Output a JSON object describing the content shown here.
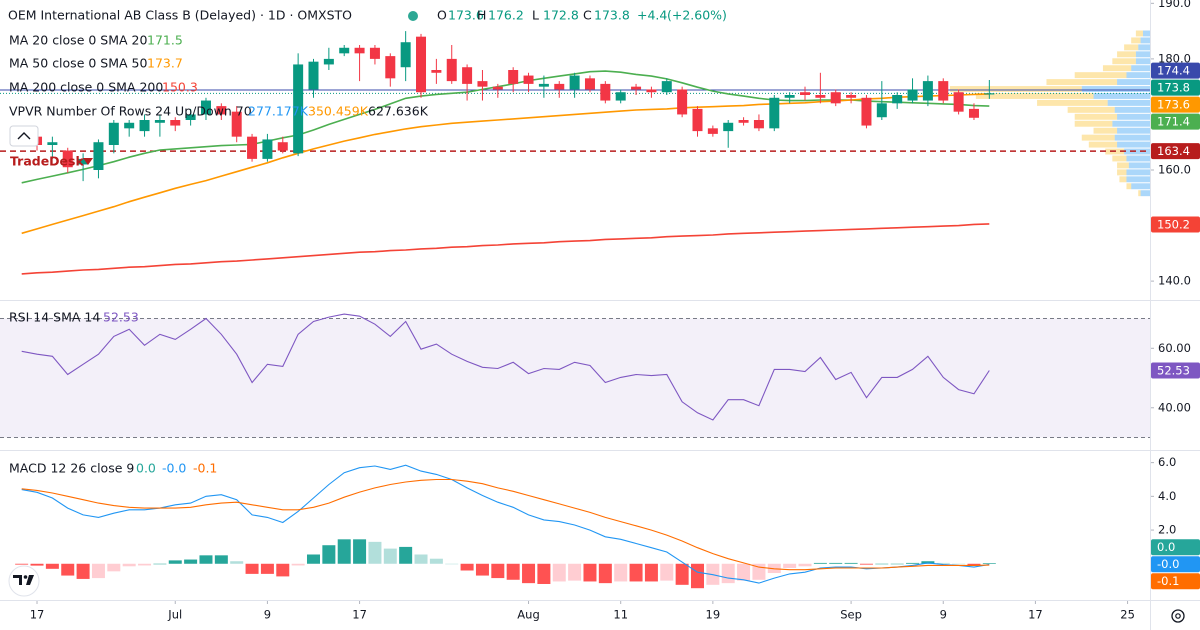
{
  "chart_data": [
    {
      "type": "candlestick",
      "title": "OEM International AB Class B (Delayed) · 1D · OMXSTO",
      "ohlc_labels": [
        "O",
        "H",
        "L",
        "C"
      ],
      "change": {
        "value": 4.4,
        "label": "+4.4"
      },
      "change_pct": {
        "value": 2.6,
        "label": "(+2.60%)"
      },
      "annotation": "TradeDesk",
      "up_color": "#089981",
      "down_color": "#f23645",
      "x": [
        0,
        1,
        2,
        3,
        4,
        5,
        6,
        7,
        8,
        9,
        10,
        11,
        12,
        13,
        14,
        15,
        16,
        17,
        18,
        19,
        20,
        21,
        22,
        23,
        24,
        25,
        26,
        27,
        28,
        29,
        30,
        31,
        32,
        33,
        34,
        35,
        36,
        37,
        38,
        39,
        40,
        41,
        42,
        43,
        44,
        45,
        46,
        47,
        48,
        49,
        50,
        51,
        52,
        53,
        54,
        55,
        56,
        57,
        58,
        59,
        60,
        61,
        62,
        63
      ],
      "open": [
        166,
        166,
        164.5,
        163.5,
        161,
        160,
        164.5,
        167.5,
        167,
        168.5,
        169,
        169,
        170,
        171.5,
        170.5,
        166,
        162,
        165,
        163,
        174.5,
        179,
        181,
        182,
        182,
        180.5,
        178.5,
        184,
        178,
        180,
        178.5,
        176,
        175,
        178,
        177,
        175,
        175.5,
        174.5,
        176.5,
        175.5,
        172.5,
        175,
        174.5,
        174,
        174.5,
        171,
        167.5,
        167,
        169,
        169,
        167.5,
        173,
        174,
        173.5,
        174,
        173.5,
        173,
        169.5,
        172,
        172.5,
        172.5,
        176,
        174,
        171,
        173.6
      ],
      "high": [
        168,
        167,
        166,
        164,
        163,
        165.5,
        169,
        169,
        170,
        170,
        169.5,
        171,
        173,
        172,
        171.5,
        166.5,
        166.5,
        166,
        181,
        180,
        182,
        182.5,
        182.5,
        182.5,
        181,
        185,
        184.5,
        180,
        182.5,
        179,
        178,
        175.5,
        178.5,
        177.5,
        177,
        176,
        177.5,
        177,
        176,
        174.5,
        175.5,
        175,
        176.5,
        175,
        171.5,
        168,
        169,
        169.5,
        170,
        173.5,
        174,
        175,
        177.5,
        174.5,
        174,
        173.5,
        176,
        174,
        176.5,
        177,
        176.5,
        174.5,
        172,
        176.2
      ],
      "low": [
        165,
        163.5,
        162,
        159.5,
        158,
        158.5,
        163,
        166,
        166,
        166,
        167,
        168,
        169,
        169,
        165,
        161.5,
        161.5,
        163,
        162.5,
        173,
        178,
        180.5,
        176,
        179,
        175,
        176,
        173,
        175.5,
        175.5,
        172.5,
        172.5,
        173,
        174,
        174,
        173,
        173,
        173,
        174,
        172,
        172,
        173.5,
        173,
        173.5,
        169.5,
        166,
        166,
        164,
        168,
        167,
        167,
        172,
        172.5,
        172,
        171.5,
        172,
        167.5,
        169,
        171,
        172,
        171.5,
        172,
        170,
        169,
        172.8
      ],
      "close": [
        167,
        164.5,
        165,
        160.5,
        162,
        165,
        168.5,
        168.5,
        169,
        169,
        168,
        170,
        172.5,
        170,
        166,
        162,
        165.5,
        163.5,
        179,
        179.5,
        180,
        182,
        181,
        180,
        176.5,
        183,
        174,
        177.5,
        176,
        175.5,
        175,
        174.5,
        175.5,
        175.5,
        175.5,
        174.5,
        177,
        174.5,
        172.5,
        174,
        174.5,
        174,
        176,
        170,
        167,
        166.5,
        168.5,
        168.5,
        167.5,
        173,
        173.5,
        173.5,
        173,
        172,
        173,
        168,
        172,
        173.5,
        174.5,
        176,
        172.5,
        170.5,
        169.4,
        173.8
      ],
      "series": [
        {
          "name": "MA 20 close 0 SMA 20",
          "color": "#4caf50",
          "values": [
            157.7,
            158.3,
            158.9,
            159.5,
            160.1,
            160.8,
            161.5,
            162.3,
            163.0,
            163.6,
            163.8,
            164.0,
            164.2,
            164.4,
            164.5,
            164.6,
            165.2,
            165.8,
            166.3,
            167.2,
            168.2,
            169.1,
            170.0,
            170.9,
            171.9,
            172.9,
            173.3,
            173.6,
            173.8,
            174.0,
            174.5,
            175.0,
            175.5,
            176.1,
            176.5,
            176.9,
            177.3,
            177.7,
            177.8,
            177.6,
            177.2,
            176.9,
            176.4,
            175.7,
            174.9,
            174.2,
            173.7,
            173.3,
            172.9,
            172.6,
            172.5,
            172.5,
            172.6,
            172.6,
            172.6,
            172.4,
            172.3,
            172.2,
            172.1,
            172.0,
            171.9,
            171.8,
            171.6,
            171.5
          ]
        },
        {
          "name": "MA 50 close 0 SMA 50",
          "color": "#ff9800",
          "values": [
            148.6,
            149.4,
            150.2,
            151.0,
            151.8,
            152.6,
            153.4,
            154.3,
            155.1,
            155.9,
            156.7,
            157.4,
            158.1,
            158.9,
            159.7,
            160.5,
            161.3,
            162.2,
            163.0,
            163.8,
            164.5,
            165.2,
            165.8,
            166.4,
            166.9,
            167.4,
            167.8,
            168.1,
            168.4,
            168.6,
            168.8,
            169.0,
            169.2,
            169.4,
            169.6,
            169.8,
            170.0,
            170.2,
            170.4,
            170.6,
            170.8,
            170.9,
            171.0,
            171.2,
            171.3,
            171.4,
            171.5,
            171.6,
            171.8,
            171.9,
            172.0,
            172.1,
            172.3,
            172.4,
            172.6,
            172.8,
            172.9,
            173.1,
            173.2,
            173.3,
            173.4,
            173.5,
            173.6,
            173.7
          ]
        },
        {
          "name": "MA 200 close 0 SMA 200",
          "color": "#f44336",
          "values": [
            141.3,
            141.5,
            141.6,
            141.8,
            142.0,
            142.1,
            142.3,
            142.5,
            142.6,
            142.8,
            143.0,
            143.1,
            143.3,
            143.5,
            143.6,
            143.8,
            144.0,
            144.2,
            144.4,
            144.6,
            144.8,
            145.0,
            145.2,
            145.3,
            145.5,
            145.6,
            145.8,
            145.9,
            146.1,
            146.2,
            146.4,
            146.5,
            146.7,
            146.8,
            146.9,
            147.1,
            147.2,
            147.3,
            147.5,
            147.6,
            147.7,
            147.8,
            148.0,
            148.1,
            148.2,
            148.3,
            148.5,
            148.6,
            148.7,
            148.8,
            148.9,
            149.0,
            149.1,
            149.2,
            149.3,
            149.4,
            149.5,
            149.6,
            149.7,
            149.8,
            149.9,
            150.0,
            150.2,
            150.3
          ]
        }
      ],
      "vpvr": {
        "label": "VPVR Number Of Rows 24 Up/Down 70",
        "up_total": {
          "value": 277177,
          "label": "277.177K",
          "color": "#2196f3"
        },
        "down_total": {
          "value": 350459,
          "label": "350.459K",
          "color": "#ff9800"
        },
        "total": {
          "value": 627636,
          "label": "627.636K",
          "color": "#131722"
        },
        "up_color": "rgba(33,150,243,0.38)",
        "down_color": "rgba(251,192,45,0.40)",
        "price_range": [
          155.2,
          185.2
        ],
        "rows": [
          {
            "up": 4,
            "down": 1
          },
          {
            "up": 8,
            "down": 2
          },
          {
            "up": 10,
            "down": 3
          },
          {
            "up": 10,
            "down": 4
          },
          {
            "up": 9,
            "down": 5
          },
          {
            "up": 10,
            "down": 6
          },
          {
            "up": 11,
            "down": 8
          },
          {
            "up": 14,
            "down": 12
          },
          {
            "up": 15,
            "down": 14
          },
          {
            "up": 14,
            "down": 10
          },
          {
            "up": 16,
            "down": 16
          },
          {
            "up": 14,
            "down": 18
          },
          {
            "up": 15,
            "down": 20
          },
          {
            "up": 18,
            "down": 30
          },
          {
            "up": 24,
            "down": 50
          },
          {
            "up": 29,
            "down": 56
          },
          {
            "up": 14,
            "down": 30
          },
          {
            "up": 10,
            "down": 22
          },
          {
            "up": 8,
            "down": 12
          },
          {
            "up": 6,
            "down": 10
          },
          {
            "up": 6,
            "down": 8
          },
          {
            "up": 5,
            "down": 6
          },
          {
            "up": 4,
            "down": 4
          },
          {
            "up": 3,
            "down": 3
          }
        ]
      },
      "axis_labels": [
        {
          "value": 174.4,
          "color": "#3949ab",
          "line": "solid"
        },
        {
          "value": 173.8,
          "color": "#089981",
          "line": "dotted"
        },
        {
          "value": 173.6,
          "color": "#ff9800"
        },
        {
          "value": 171.4,
          "color": "#4caf50"
        },
        {
          "value": 163.4,
          "color": "#b71c1c",
          "line": "dashed"
        },
        {
          "value": 150.2,
          "color": "#f44336"
        }
      ],
      "ylim": [
        136.6,
        190.6
      ],
      "yticks": [
        {
          "value": 140,
          "label": "140.0"
        },
        {
          "value": 160,
          "label": "160.0"
        },
        {
          "value": 180,
          "label": "180.0"
        },
        {
          "value": 190,
          "label": "190.0"
        }
      ],
      "xlim": [
        -1.41,
        73.46
      ],
      "xticks": [
        {
          "value": 1,
          "label": "17"
        },
        {
          "value": 10,
          "label": "Jul"
        },
        {
          "value": 16,
          "label": "9"
        },
        {
          "value": 22,
          "label": "17"
        },
        {
          "value": 33,
          "label": "Aug"
        },
        {
          "value": 39,
          "label": "11"
        },
        {
          "value": 45,
          "label": "19"
        },
        {
          "value": 54,
          "label": "Sep"
        },
        {
          "value": 60,
          "label": "9"
        },
        {
          "value": 66,
          "label": "17"
        },
        {
          "value": 72,
          "label": "25"
        }
      ],
      "grid": false
    },
    {
      "type": "line",
      "name": "RSI 14 SMA 14",
      "color": "#7e57c2",
      "values": [
        59,
        58,
        57.3,
        51.2,
        54.6,
        58,
        64,
        66.4,
        61,
        64.7,
        63,
        66.4,
        70,
        64.7,
        58,
        48.5,
        54.6,
        53.9,
        64.7,
        69,
        70.5,
        71.5,
        70.8,
        68.1,
        64,
        69,
        59.7,
        61.4,
        58,
        55.6,
        53.6,
        53.2,
        55.3,
        51.5,
        53.2,
        52.9,
        55.3,
        54.2,
        48.5,
        50.2,
        51.2,
        50.8,
        51.2,
        42,
        38.3,
        35.9,
        42.7,
        42.7,
        40.7,
        52.9,
        52.9,
        52.2,
        56.9,
        49.5,
        51.9,
        43.4,
        50.2,
        50.2,
        52.9,
        57.3,
        50.2,
        46.1,
        44.7,
        52.53
      ],
      "bands": [
        30,
        70
      ],
      "band_fill": "rgba(126,87,194,0.09)",
      "ylim": [
        25.8,
        75.9
      ],
      "yticks": [
        {
          "value": 40,
          "label": "40.00"
        },
        {
          "value": 60,
          "label": "60.00"
        }
      ]
    },
    {
      "type": "macd",
      "name": "MACD 12 26 close 9",
      "series": [
        {
          "kind": "histogram",
          "color": "#26a69a",
          "last_label": "0.0",
          "colors": {
            "pos_up": "#26a69a",
            "pos_down": "#b2dfdb",
            "neg_down": "#ff5252",
            "neg_up": "#ffcdd2"
          },
          "values": [
            -0.05,
            -0.11,
            -0.3,
            -0.7,
            -0.9,
            -0.85,
            -0.45,
            -0.15,
            -0.1,
            0,
            0.2,
            0.25,
            0.5,
            0.5,
            0.15,
            -0.6,
            -0.6,
            -0.75,
            -0.1,
            0.55,
            1.1,
            1.45,
            1.45,
            1.3,
            0.9,
            1.0,
            0.55,
            0.3,
            0,
            -0.4,
            -0.7,
            -0.85,
            -0.95,
            -1.15,
            -1.2,
            -1.05,
            -1.0,
            -1.05,
            -1.15,
            -1.05,
            -1.05,
            -1.05,
            -1.0,
            -1.25,
            -1.45,
            -1.25,
            -1.15,
            -1.0,
            -0.95,
            -0.55,
            -0.25,
            -0.15,
            0.05,
            0.05,
            0.05,
            -0.05,
            0,
            0,
            0.05,
            0.15,
            0.05,
            0,
            -0.1,
            0.04
          ]
        },
        {
          "kind": "line",
          "color": "#2196f3",
          "last_label": "-0.0",
          "values": [
            4.4,
            4.24,
            3.9,
            3.3,
            2.9,
            2.75,
            3.0,
            3.2,
            3.2,
            3.3,
            3.5,
            3.6,
            4.0,
            4.1,
            3.8,
            2.9,
            2.75,
            2.45,
            3.1,
            3.9,
            4.7,
            5.4,
            5.7,
            5.8,
            5.6,
            5.85,
            5.5,
            5.3,
            5.0,
            4.5,
            4.05,
            3.65,
            3.35,
            2.9,
            2.6,
            2.5,
            2.3,
            2.0,
            1.6,
            1.45,
            1.2,
            0.95,
            0.7,
            0.1,
            -0.5,
            -0.65,
            -0.85,
            -0.95,
            -1.15,
            -0.85,
            -0.6,
            -0.5,
            -0.25,
            -0.2,
            -0.2,
            -0.3,
            -0.25,
            -0.2,
            -0.1,
            0.05,
            -0.05,
            -0.1,
            -0.2,
            -0.04
          ]
        },
        {
          "kind": "line",
          "color": "#ff6d00",
          "last_label": "-0.1",
          "values": [
            4.45,
            4.35,
            4.2,
            4.0,
            3.8,
            3.6,
            3.45,
            3.35,
            3.3,
            3.3,
            3.3,
            3.35,
            3.5,
            3.6,
            3.65,
            3.5,
            3.35,
            3.2,
            3.2,
            3.35,
            3.6,
            3.95,
            4.25,
            4.5,
            4.7,
            4.85,
            4.95,
            5.0,
            5.0,
            4.9,
            4.75,
            4.5,
            4.3,
            4.05,
            3.8,
            3.55,
            3.3,
            3.05,
            2.75,
            2.5,
            2.25,
            2.0,
            1.7,
            1.35,
            0.95,
            0.6,
            0.3,
            0.05,
            -0.2,
            -0.3,
            -0.35,
            -0.35,
            -0.3,
            -0.25,
            -0.25,
            -0.25,
            -0.25,
            -0.2,
            -0.15,
            -0.1,
            -0.1,
            -0.1,
            -0.1,
            -0.08
          ]
        }
      ],
      "ylim": [
        -2.15,
        6.69
      ],
      "yticks": [
        {
          "value": 0,
          "label": "0.0"
        },
        {
          "value": 2,
          "label": "2.0"
        },
        {
          "value": 4,
          "label": "4.0"
        },
        {
          "value": 6,
          "label": "6.0"
        }
      ]
    }
  ]
}
